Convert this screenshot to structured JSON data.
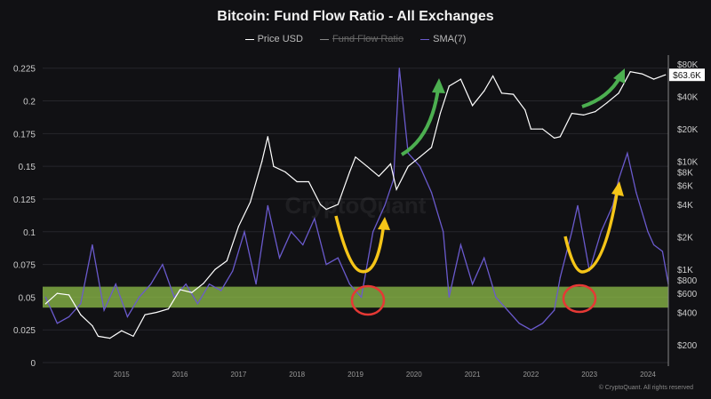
{
  "chart_data": {
    "type": "line",
    "title": "Bitcoin: Fund Flow Ratio - All Exchanges",
    "legend": [
      {
        "name": "Price USD",
        "color": "#ffffff",
        "visible": true
      },
      {
        "name": "Fund Flow Ratio",
        "color": "#888888",
        "visible": false
      },
      {
        "name": "SMA(7)",
        "color": "#6a5acd",
        "visible": true
      }
    ],
    "legend_placement": "top-center",
    "x_ticks": [
      "2015",
      "2016",
      "2017",
      "2018",
      "2019",
      "2020",
      "2021",
      "2022",
      "2023",
      "2024"
    ],
    "xlim": [
      2014.15,
      2024.85
    ],
    "y_left": {
      "ticks": [
        "0",
        "0.025",
        "0.05",
        "0.075",
        "0.1",
        "0.125",
        "0.15",
        "0.175",
        "0.2",
        "0.225"
      ],
      "ylim": [
        0,
        0.235
      ]
    },
    "y_right": {
      "scale": "log",
      "ticks": [
        "$200",
        "$400",
        "$600",
        "$800",
        "$1K",
        "$2K",
        "$4K",
        "$6K",
        "$8K",
        "$10K",
        "$20K",
        "$40K",
        "$80K"
      ],
      "tick_values": [
        200,
        400,
        600,
        800,
        1000,
        2000,
        4000,
        6000,
        8000,
        10000,
        20000,
        40000,
        80000
      ]
    },
    "last_price_label": "$63.6K",
    "series": [
      {
        "name": "Price USD",
        "axis": "right",
        "color": "#ffffff",
        "x": [
          2014.2,
          2014.4,
          2014.6,
          2014.8,
          2015.0,
          2015.1,
          2015.3,
          2015.5,
          2015.7,
          2015.9,
          2016.1,
          2016.3,
          2016.5,
          2016.7,
          2016.9,
          2017.1,
          2017.3,
          2017.5,
          2017.7,
          2017.9,
          2018.0,
          2018.1,
          2018.3,
          2018.5,
          2018.7,
          2018.9,
          2019.0,
          2019.2,
          2019.4,
          2019.5,
          2019.7,
          2019.9,
          2020.1,
          2020.2,
          2020.4,
          2020.6,
          2020.8,
          2020.95,
          2021.1,
          2021.3,
          2021.5,
          2021.7,
          2021.85,
          2022.0,
          2022.2,
          2022.4,
          2022.5,
          2022.7,
          2022.9,
          2023.0,
          2023.2,
          2023.4,
          2023.6,
          2023.8,
          2024.0,
          2024.2,
          2024.4,
          2024.6,
          2024.8
        ],
        "y": [
          480,
          600,
          580,
          380,
          300,
          240,
          230,
          270,
          240,
          380,
          400,
          430,
          650,
          610,
          740,
          1000,
          1200,
          2500,
          4200,
          10000,
          17000,
          9000,
          8000,
          6500,
          6500,
          4000,
          3600,
          4000,
          8000,
          11000,
          9000,
          7300,
          9500,
          5500,
          9000,
          11000,
          13500,
          28000,
          50000,
          58000,
          33000,
          45000,
          62000,
          43000,
          42000,
          30000,
          20000,
          20000,
          16500,
          17000,
          28000,
          27000,
          29000,
          35000,
          43000,
          68000,
          65000,
          58000,
          63600
        ]
      },
      {
        "name": "SMA(7)",
        "axis": "left",
        "color": "#6a5acd",
        "x": [
          2014.2,
          2014.4,
          2014.6,
          2014.8,
          2015.0,
          2015.2,
          2015.4,
          2015.6,
          2015.8,
          2016.0,
          2016.2,
          2016.4,
          2016.6,
          2016.8,
          2017.0,
          2017.2,
          2017.4,
          2017.6,
          2017.8,
          2018.0,
          2018.2,
          2018.4,
          2018.6,
          2018.8,
          2019.0,
          2019.2,
          2019.4,
          2019.6,
          2019.8,
          2020.0,
          2020.15,
          2020.25,
          2020.4,
          2020.6,
          2020.8,
          2021.0,
          2021.1,
          2021.3,
          2021.5,
          2021.7,
          2021.9,
          2022.1,
          2022.3,
          2022.5,
          2022.7,
          2022.9,
          2023.0,
          2023.2,
          2023.3,
          2023.5,
          2023.7,
          2023.9,
          2024.0,
          2024.15,
          2024.3,
          2024.5,
          2024.6,
          2024.75,
          2024.85
        ],
        "y": [
          0.05,
          0.03,
          0.035,
          0.045,
          0.09,
          0.04,
          0.06,
          0.035,
          0.05,
          0.06,
          0.075,
          0.05,
          0.06,
          0.045,
          0.06,
          0.055,
          0.07,
          0.1,
          0.06,
          0.12,
          0.08,
          0.1,
          0.09,
          0.11,
          0.075,
          0.08,
          0.06,
          0.05,
          0.1,
          0.12,
          0.14,
          0.225,
          0.16,
          0.15,
          0.13,
          0.1,
          0.05,
          0.09,
          0.06,
          0.08,
          0.05,
          0.04,
          0.03,
          0.025,
          0.03,
          0.04,
          0.065,
          0.1,
          0.12,
          0.07,
          0.1,
          0.12,
          0.14,
          0.16,
          0.13,
          0.1,
          0.09,
          0.085,
          0.06
        ]
      }
    ],
    "annotations": {
      "highlight_band": [
        0.042,
        0.058
      ],
      "band_color": "#8fbf4a",
      "circle_color": "#e53935",
      "u_arrow_color": "#f5c518",
      "up_arrow_color": "#4caf50",
      "circle_dates": [
        2019.7,
        2023.3
      ]
    },
    "watermark": "CryptoQuant",
    "footer": "© CryptoQuant. All rights reserved"
  }
}
